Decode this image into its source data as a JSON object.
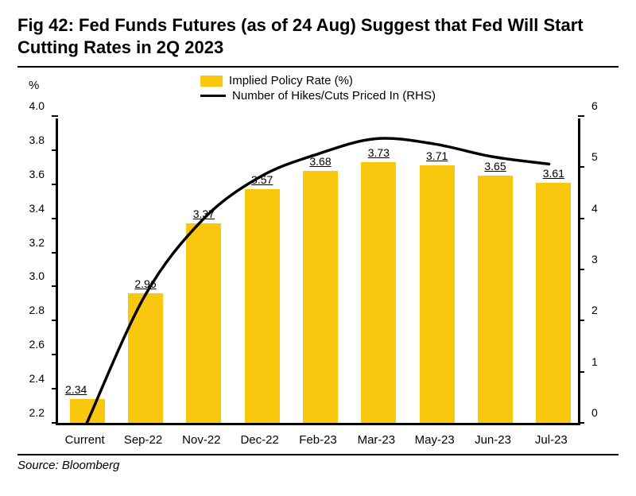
{
  "title": "Fig 42: Fed Funds Futures (as of 24 Aug) Suggest that Fed Will Start Cutting Rates in 2Q 2023",
  "source": "Source: Bloomberg",
  "chart": {
    "type": "bar+line",
    "unit_label_left": "%",
    "legend": {
      "bar_label": "Implied Policy Rate (%)",
      "line_label": "Number of Hikes/Cuts Priced In (RHS)"
    },
    "categories": [
      "Current",
      "Sep-22",
      "Nov-22",
      "Dec-22",
      "Feb-23",
      "Mar-23",
      "May-23",
      "Jun-23",
      "Jul-23"
    ],
    "bars": {
      "values": [
        2.34,
        2.96,
        3.37,
        3.57,
        3.68,
        3.73,
        3.71,
        3.65,
        3.61
      ],
      "value_labels": [
        "2.34",
        "2.96",
        "3.37",
        "3.57",
        "3.68",
        "3.73",
        "3.71",
        "3.65",
        "3.61"
      ],
      "color": "#f9c80e",
      "width_fraction": 0.6
    },
    "line": {
      "values": [
        0.0,
        2.5,
        4.0,
        4.85,
        5.3,
        5.6,
        5.5,
        5.25,
        5.1
      ],
      "color": "#000000",
      "stroke_width": 3.5
    },
    "y_left": {
      "min": 2.2,
      "max": 4.0,
      "ticks": [
        2.2,
        2.4,
        2.6,
        2.8,
        3.0,
        3.2,
        3.4,
        3.6,
        3.8,
        4.0
      ],
      "tick_labels": [
        "2.2",
        "2.4",
        "2.6",
        "2.8",
        "3.0",
        "3.2",
        "3.4",
        "3.6",
        "3.8",
        "4.0"
      ]
    },
    "y_right": {
      "min": 0,
      "max": 6,
      "ticks": [
        0,
        1,
        2,
        3,
        4,
        5,
        6
      ],
      "tick_labels": [
        "0",
        "1",
        "2",
        "3",
        "4",
        "5",
        "6"
      ]
    },
    "background_color": "#ffffff",
    "axis_color": "#000000",
    "label_fontsize": 15,
    "tick_fontsize": 14,
    "title_fontsize": 22
  }
}
